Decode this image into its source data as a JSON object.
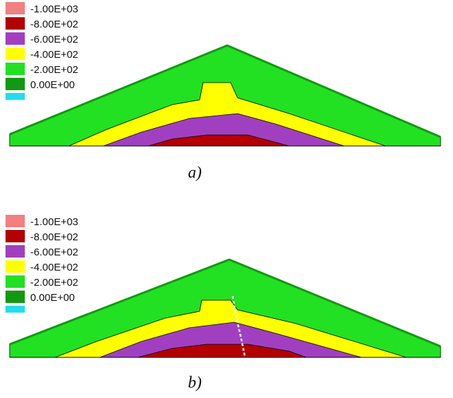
{
  "figure": {
    "colors": {
      "red_light": "#f28080",
      "red_dark": "#b30000",
      "purple": "#a040c0",
      "yellow": "#ffff00",
      "green_light": "#22e022",
      "green_dark": "#119911",
      "cyan": "#22ddee",
      "outline": "#000000"
    },
    "panels": [
      {
        "caption": "a)",
        "legend": [
          {
            "label": "-1.00E+03",
            "color": "#f28080"
          },
          {
            "label": "-8.00E+02",
            "color": "#b30000"
          },
          {
            "label": "-6.00E+02",
            "color": "#a040c0"
          },
          {
            "label": "-4.00E+02",
            "color": "#ffff00"
          },
          {
            "label": "-2.00E+02",
            "color": "#22e022"
          },
          {
            "label": "0.00E+00",
            "color": "#119911"
          },
          {
            "label": "",
            "color": "#22ddee"
          }
        ]
      },
      {
        "caption": "b)",
        "legend": [
          {
            "label": "-1.00E+03",
            "color": "#f28080"
          },
          {
            "label": "-8.00E+02",
            "color": "#b30000"
          },
          {
            "label": "-6.00E+02",
            "color": "#a040c0"
          },
          {
            "label": "-4.00E+02",
            "color": "#ffff00"
          },
          {
            "label": "-2.00E+02",
            "color": "#22e022"
          },
          {
            "label": "0.00E+00",
            "color": "#119911"
          },
          {
            "label": "",
            "color": "#22ddee"
          }
        ]
      }
    ]
  }
}
